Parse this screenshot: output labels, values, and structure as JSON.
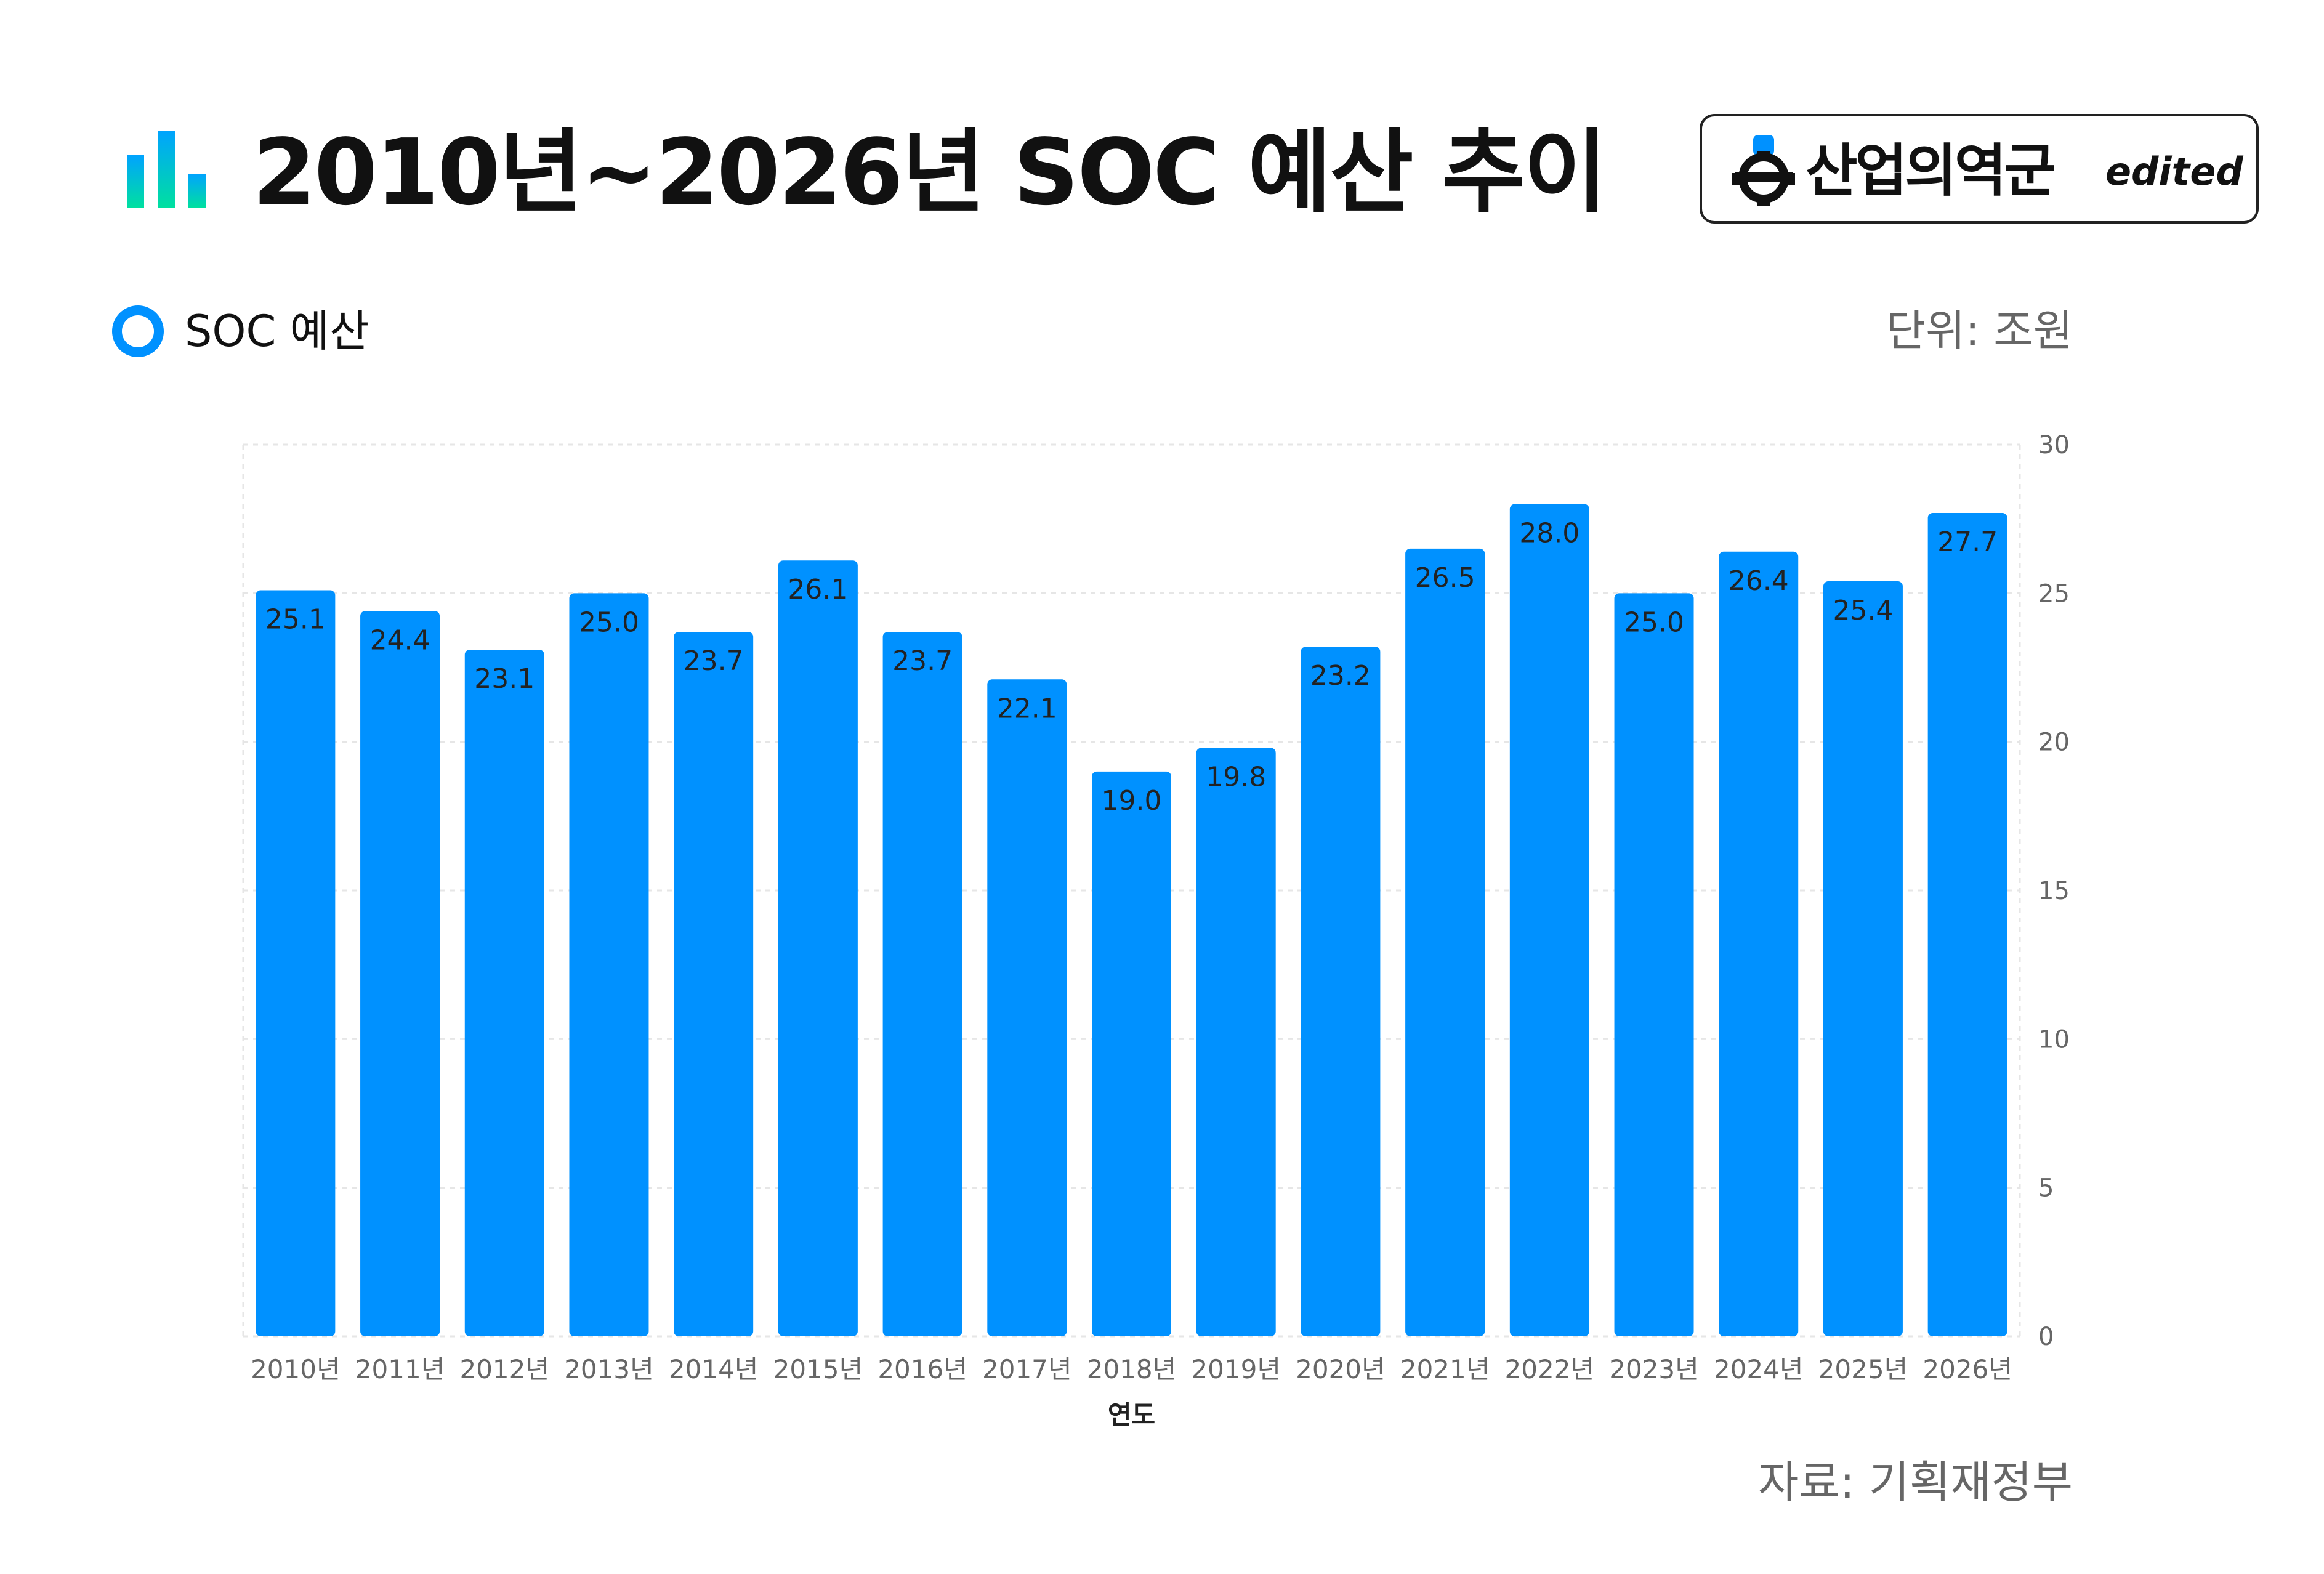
{
  "header": {
    "title": "2010년~2026년 SOC 예산 추이",
    "brand_name": "산업의역군",
    "brand_tag": "edited"
  },
  "legend": {
    "label": "SOC 예산"
  },
  "unit_label": "단위: 조원",
  "source_label": "자료: 기획재정부",
  "icons": {
    "title": "bar-chart-icon",
    "brand": "helmet-gear-icon",
    "legend": "ring-marker-icon"
  },
  "colors": {
    "bar": "#0091FF",
    "title_icon_top": "#00A3FF",
    "title_icon_bottom": "#00E0A0"
  },
  "chart_data": {
    "type": "bar",
    "categories": [
      "2010년",
      "2011년",
      "2012년",
      "2013년",
      "2014년",
      "2015년",
      "2016년",
      "2017년",
      "2018년",
      "2019년",
      "2020년",
      "2021년",
      "2022년",
      "2023년",
      "2024년",
      "2025년",
      "2026년"
    ],
    "series": [
      {
        "name": "SOC 예산",
        "values": [
          25.1,
          24.4,
          23.1,
          25.0,
          23.7,
          26.1,
          23.7,
          22.1,
          19.0,
          19.8,
          23.2,
          26.5,
          28.0,
          25.0,
          26.4,
          25.4,
          27.7
        ]
      }
    ],
    "value_labels": [
      "25.1",
      "24.4",
      "23.1",
      "25.0",
      "23.7",
      "26.1",
      "23.7",
      "22.1",
      "19.0",
      "19.8",
      "23.2",
      "26.5",
      "28.0",
      "25.0",
      "26.4",
      "25.4",
      "27.7"
    ],
    "xlabel": "연도",
    "ylabel": "",
    "ylim": [
      0,
      30
    ],
    "yticks": [
      0,
      5,
      10,
      15,
      20,
      25,
      30
    ],
    "y_axis_side": "right",
    "grid": true,
    "legend_position": "top-left"
  }
}
